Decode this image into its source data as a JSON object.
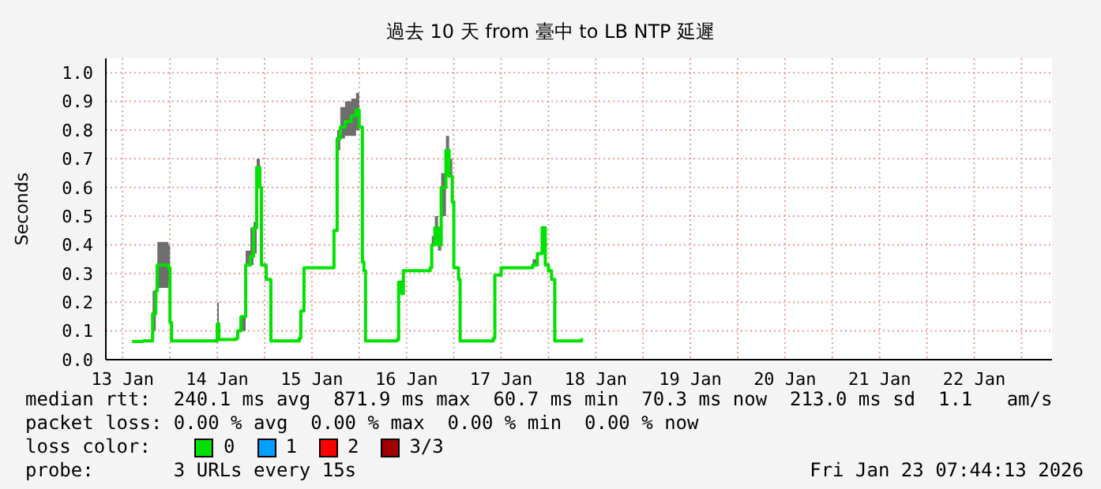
{
  "chart_data": {
    "type": "step",
    "title": "過去 10 天 from 臺中 to LB NTP 延遲",
    "ylabel": "Seconds",
    "legend_title": "loss color:",
    "legend": "bottom left",
    "grid": true,
    "x": [
      "2026-01-13T14:24",
      "2026-01-13T17:12",
      "2026-01-13T19:36",
      "2026-01-13T20:24",
      "2026-01-13T20:48",
      "2026-01-13T23:36",
      "2026-01-14T00:00",
      "2026-01-14T00:24",
      "2026-01-14T11:36",
      "2026-01-14T12:00",
      "2026-01-14T12:24",
      "2026-01-14T16:48",
      "2026-01-14T17:12",
      "2026-01-14T18:00",
      "2026-01-14T19:12",
      "2026-01-14T20:24",
      "2026-01-14T21:12",
      "2026-01-14T22:00",
      "2026-01-14T22:48",
      "2026-01-14T23:12",
      "2026-01-15T00:24",
      "2026-01-15T01:36",
      "2026-01-15T08:48",
      "2026-01-15T09:12",
      "2026-01-15T10:00",
      "2026-01-15T17:12",
      "2026-01-15T17:36",
      "2026-01-15T18:24",
      "2026-01-15T19:12",
      "2026-01-15T20:24",
      "2026-01-15T22:00",
      "2026-01-15T23:12",
      "2026-01-16T00:00",
      "2026-01-16T00:48",
      "2026-01-16T01:12",
      "2026-01-16T01:36",
      "2026-01-16T09:36",
      "2026-01-16T10:00",
      "2026-01-16T10:48",
      "2026-01-16T11:12",
      "2026-01-16T18:00",
      "2026-01-16T18:24",
      "2026-01-16T19:12",
      "2026-01-16T20:00",
      "2026-01-16T20:48",
      "2026-01-16T22:00",
      "2026-01-16T22:48",
      "2026-01-16T23:36",
      "2026-01-17T00:00",
      "2026-01-17T01:12",
      "2026-01-17T01:36",
      "2026-01-17T10:00",
      "2026-01-17T10:24",
      "2026-01-17T12:00",
      "2026-01-17T20:00",
      "2026-01-17T21:12",
      "2026-01-17T22:24",
      "2026-01-17T23:12",
      "2026-01-18T00:00",
      "2026-01-18T00:48",
      "2026-01-18T01:36",
      "2026-01-18T08:24"
    ],
    "series": [
      {
        "name": "0",
        "color": "#00e000",
        "values": [
          0.063,
          0.065,
          0.16,
          0.24,
          0.33,
          0.32,
          0.13,
          0.065,
          0.065,
          0.125,
          0.07,
          0.075,
          0.1,
          0.15,
          0.33,
          0.36,
          0.46,
          0.67,
          0.6,
          0.33,
          0.28,
          0.065,
          0.075,
          0.17,
          0.32,
          0.32,
          0.45,
          0.77,
          0.81,
          0.83,
          0.85,
          0.87,
          0.81,
          0.34,
          0.31,
          0.065,
          0.07,
          0.27,
          0.23,
          0.31,
          0.32,
          0.4,
          0.46,
          0.4,
          0.6,
          0.73,
          0.64,
          0.55,
          0.32,
          0.28,
          0.065,
          0.075,
          0.295,
          0.32,
          0.33,
          0.37,
          0.46,
          0.33,
          0.31,
          0.28,
          0.065,
          0.075
        ],
        "upper": [
          0.063,
          0.065,
          0.24,
          0.33,
          0.41,
          0.4,
          0.13,
          0.065,
          0.065,
          0.2,
          0.07,
          0.075,
          0.1,
          0.15,
          0.38,
          0.46,
          0.48,
          0.7,
          0.67,
          0.33,
          0.28,
          0.065,
          0.075,
          0.17,
          0.32,
          0.32,
          0.45,
          0.8,
          0.88,
          0.9,
          0.91,
          0.93,
          0.81,
          0.34,
          0.31,
          0.065,
          0.07,
          0.27,
          0.23,
          0.31,
          0.32,
          0.43,
          0.5,
          0.4,
          0.65,
          0.78,
          0.7,
          0.55,
          0.32,
          0.28,
          0.065,
          0.075,
          0.295,
          0.32,
          0.35,
          0.37,
          0.46,
          0.33,
          0.31,
          0.28,
          0.065,
          0.075
        ],
        "lower": [
          0.063,
          0.065,
          0.1,
          0.2,
          0.25,
          0.27,
          0.13,
          0.065,
          0.065,
          0.125,
          0.07,
          0.075,
          0.1,
          0.1,
          0.33,
          0.33,
          0.37,
          0.62,
          0.6,
          0.33,
          0.28,
          0.065,
          0.075,
          0.17,
          0.32,
          0.32,
          0.45,
          0.73,
          0.77,
          0.78,
          0.78,
          0.8,
          0.81,
          0.34,
          0.31,
          0.065,
          0.07,
          0.27,
          0.23,
          0.31,
          0.32,
          0.4,
          0.46,
          0.38,
          0.5,
          0.68,
          0.64,
          0.55,
          0.32,
          0.28,
          0.065,
          0.075,
          0.295,
          0.32,
          0.33,
          0.37,
          0.46,
          0.33,
          0.31,
          0.28,
          0.065,
          0.075
        ]
      },
      {
        "name": "1",
        "color": "#00a0ff",
        "values": [
          null,
          null,
          null,
          null,
          null,
          null,
          null,
          null,
          null,
          null,
          null,
          null,
          null,
          null,
          null,
          null,
          null,
          null,
          null,
          null,
          null,
          null,
          null,
          null,
          null,
          null,
          null,
          null,
          null,
          null,
          null,
          null,
          null,
          null,
          null,
          null,
          null,
          null,
          null,
          null,
          null,
          null,
          null,
          null,
          null,
          null,
          null,
          null,
          null,
          null,
          null,
          null,
          null,
          null,
          null,
          null,
          null,
          null,
          null,
          null,
          null,
          null
        ]
      },
      {
        "name": "2",
        "color": "#ff0000",
        "values": [
          null,
          null,
          null,
          null,
          null,
          null,
          null,
          null,
          null,
          null,
          null,
          null,
          null,
          null,
          null,
          null,
          null,
          null,
          null,
          null,
          null,
          null,
          null,
          null,
          null,
          null,
          null,
          null,
          null,
          null,
          null,
          null,
          null,
          null,
          null,
          null,
          null,
          null,
          null,
          null,
          null,
          null,
          null,
          null,
          null,
          null,
          null,
          null,
          null,
          null,
          null,
          null,
          null,
          null,
          null,
          null,
          null,
          null,
          null,
          null,
          null,
          null
        ]
      },
      {
        "name": "3/3",
        "color": "#a00000",
        "values": [
          null,
          null,
          null,
          null,
          null,
          null,
          null,
          null,
          null,
          null,
          null,
          null,
          null,
          null,
          null,
          null,
          null,
          null,
          null,
          null,
          null,
          null,
          null,
          null,
          null,
          null,
          null,
          null,
          null,
          null,
          null,
          null,
          null,
          null,
          null,
          null,
          null,
          null,
          null,
          null,
          null,
          null,
          null,
          null,
          null,
          null,
          null,
          null,
          null,
          null,
          null,
          null,
          null,
          null,
          null,
          null,
          null,
          null,
          null,
          null,
          null,
          null
        ]
      }
    ],
    "xlim": [
      "2026-01-13T07:44",
      "2026-01-23T07:44"
    ],
    "xticks": [
      {
        "value": "2026-01-13T12:00",
        "label": "13 Jan"
      },
      {
        "value": "2026-01-14T00:00",
        "label": null
      },
      {
        "value": "2026-01-14T12:00",
        "label": "14 Jan"
      },
      {
        "value": "2026-01-15T00:00",
        "label": null
      },
      {
        "value": "2026-01-15T12:00",
        "label": "15 Jan"
      },
      {
        "value": "2026-01-16T00:00",
        "label": null
      },
      {
        "value": "2026-01-16T12:00",
        "label": "16 Jan"
      },
      {
        "value": "2026-01-17T00:00",
        "label": null
      },
      {
        "value": "2026-01-17T12:00",
        "label": "17 Jan"
      },
      {
        "value": "2026-01-18T00:00",
        "label": null
      },
      {
        "value": "2026-01-18T12:00",
        "label": "18 Jan"
      },
      {
        "value": "2026-01-19T00:00",
        "label": null
      },
      {
        "value": "2026-01-19T12:00",
        "label": "19 Jan"
      },
      {
        "value": "2026-01-20T00:00",
        "label": null
      },
      {
        "value": "2026-01-20T12:00",
        "label": "20 Jan"
      },
      {
        "value": "2026-01-21T00:00",
        "label": null
      },
      {
        "value": "2026-01-21T12:00",
        "label": "21 Jan"
      },
      {
        "value": "2026-01-22T00:00",
        "label": null
      },
      {
        "value": "2026-01-22T12:00",
        "label": "22 Jan"
      },
      {
        "value": "2026-01-23T00:00",
        "label": null
      }
    ],
    "ylim": [
      0,
      1.05
    ],
    "yticks": [
      {
        "value": 0,
        "label": "0.0"
      },
      {
        "value": 0.1,
        "label": "0.1"
      },
      {
        "value": 0.2,
        "label": "0.2"
      },
      {
        "value": 0.3,
        "label": "0.3"
      },
      {
        "value": 0.4,
        "label": "0.4"
      },
      {
        "value": 0.5,
        "label": "0.5"
      },
      {
        "value": 0.6,
        "label": "0.6"
      },
      {
        "value": 0.7,
        "label": "0.7"
      },
      {
        "value": 0.8,
        "label": "0.8"
      },
      {
        "value": 0.9,
        "label": "0.9"
      },
      {
        "value": 1,
        "label": "1.0"
      }
    ],
    "annotations": [
      "median rtt:  240.1 ms avg  871.9 ms max  60.7 ms min  70.3 ms now  213.0 ms sd  1.1   am/s",
      "packet loss: 0.00 % avg  0.00 % max  0.00 % min  0.00 % now",
      "probe:       3 URLs every 15s",
      "Fri Jan 23 07:44:13 2026"
    ]
  }
}
